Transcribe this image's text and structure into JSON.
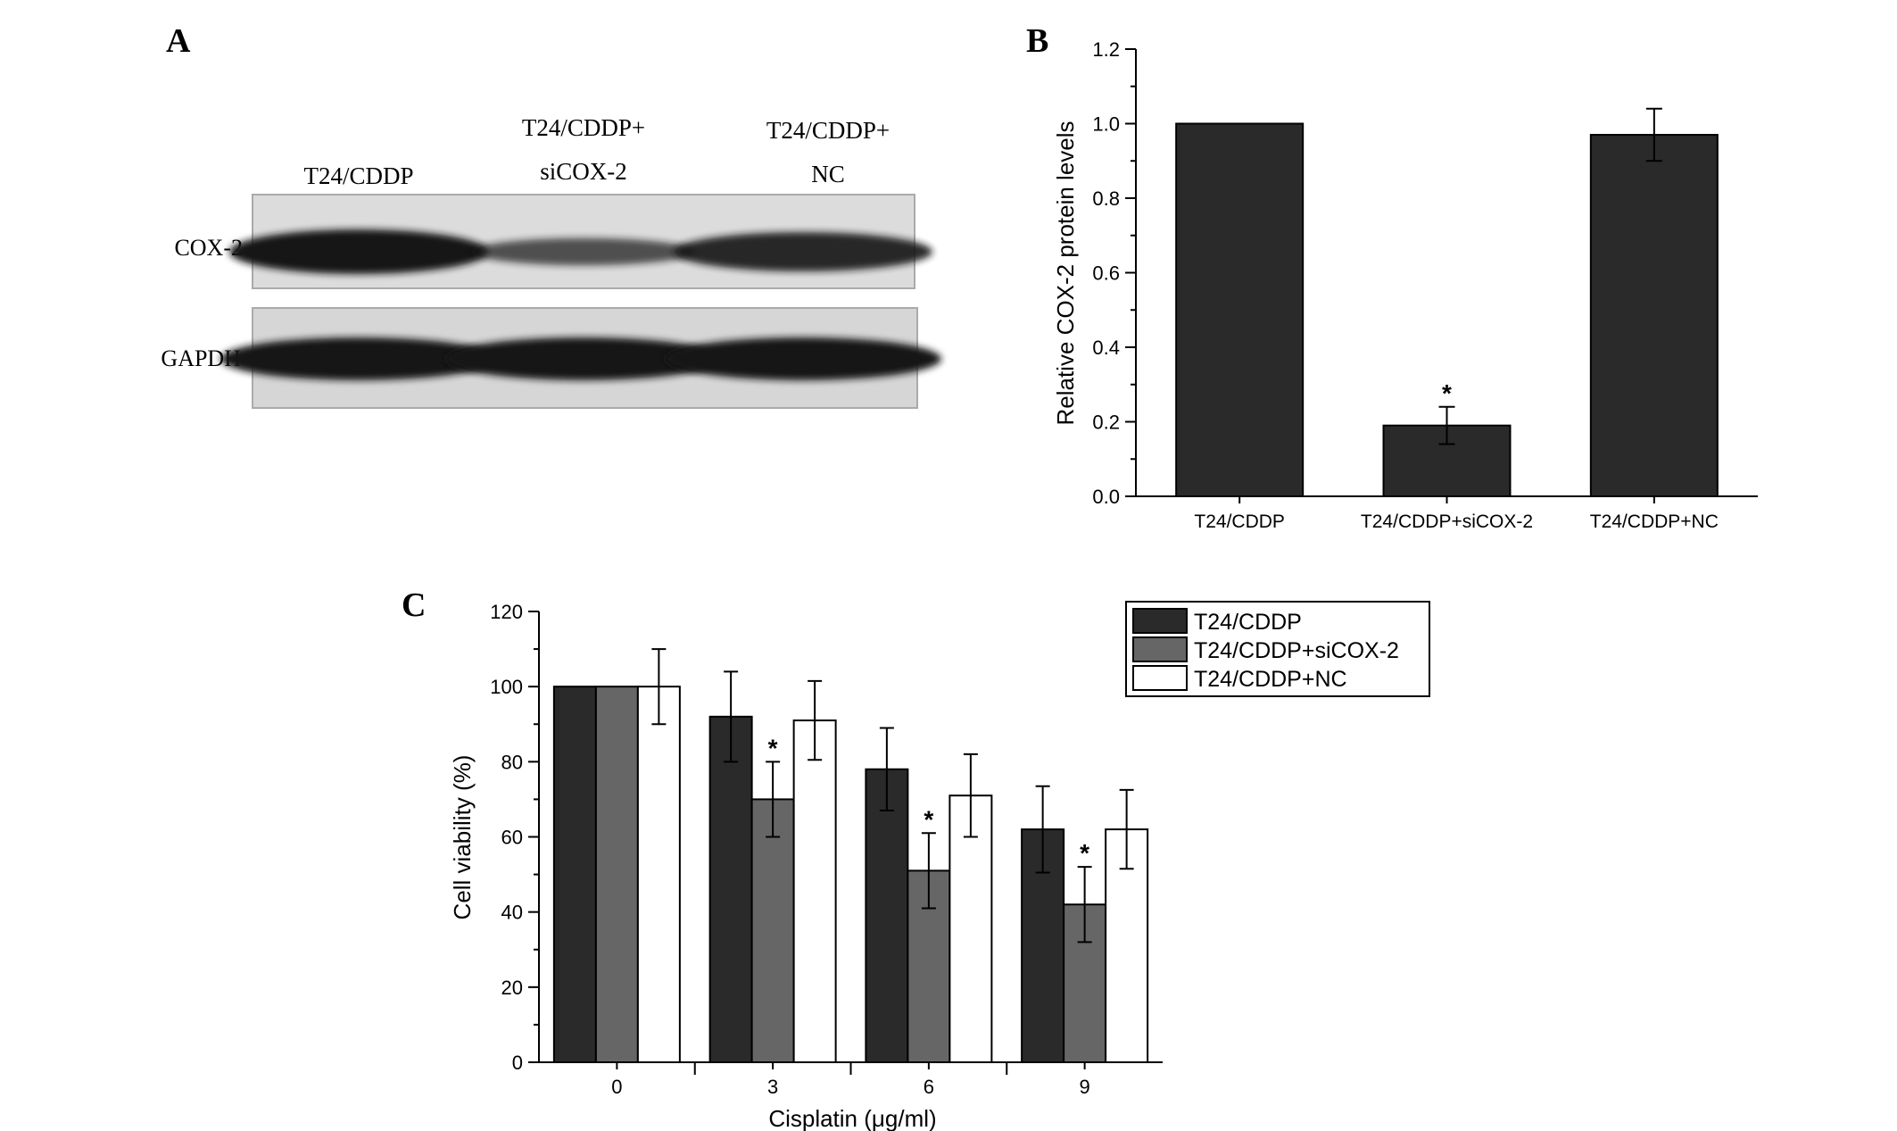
{
  "panel_labels": {
    "a": "A",
    "b": "B",
    "c": "C"
  },
  "blot": {
    "lanes": [
      {
        "line1": "T24/CDDP",
        "line2": ""
      },
      {
        "line1": "T24/CDDP+",
        "line2": "siCOX-2"
      },
      {
        "line1": "T24/CDDP+",
        "line2": "NC"
      }
    ],
    "rows": [
      {
        "label": "COX-2",
        "band_intensity": [
          1.0,
          0.35,
          0.8
        ]
      },
      {
        "label": "GAPDH",
        "band_intensity": [
          1.0,
          1.0,
          1.0
        ]
      }
    ]
  },
  "chart_data": [
    {
      "type": "bar",
      "panel": "B",
      "categories": [
        "T24/CDDP",
        "T24/CDDP+siCOX-2",
        "T24/CDDP+NC"
      ],
      "values": [
        1.0,
        0.19,
        0.97
      ],
      "errors": [
        0,
        0.05,
        0.07
      ],
      "significance": [
        "",
        "*",
        ""
      ],
      "xlabel": "",
      "ylabel": "Relative COX-2 protein levels",
      "ylim": [
        0,
        1.2
      ],
      "yticks": [
        "0.0",
        "0.2",
        "0.4",
        "0.6",
        "0.8",
        "1.0",
        "1.2"
      ],
      "bar_color": "#2a2a2a"
    },
    {
      "type": "bar",
      "panel": "C",
      "categories": [
        "0",
        "3",
        "6",
        "9"
      ],
      "xlabel": "Cisplatin (μg/ml)",
      "ylabel": "Cell viability (%)",
      "ylim": [
        0,
        120
      ],
      "yticks": [
        "0",
        "20",
        "40",
        "60",
        "80",
        "100",
        "120"
      ],
      "legend_position": "top-right",
      "series": [
        {
          "name": "T24/CDDP",
          "color": "#2a2a2a",
          "values": [
            100,
            92,
            78,
            62
          ],
          "errors": [
            0,
            12,
            11,
            11.5
          ],
          "significance": [
            "",
            "",
            "",
            ""
          ]
        },
        {
          "name": "T24/CDDP+siCOX-2",
          "color": "#666666",
          "values": [
            100,
            70,
            51,
            42
          ],
          "errors": [
            0,
            10,
            10,
            10
          ],
          "significance": [
            "",
            "*",
            "*",
            "*"
          ]
        },
        {
          "name": "T24/CDDP+NC",
          "color": "#ffffff",
          "values": [
            100,
            91,
            71,
            62
          ],
          "errors": [
            10,
            10.5,
            11,
            10.5
          ],
          "significance": [
            "",
            "",
            "",
            ""
          ]
        }
      ]
    }
  ]
}
